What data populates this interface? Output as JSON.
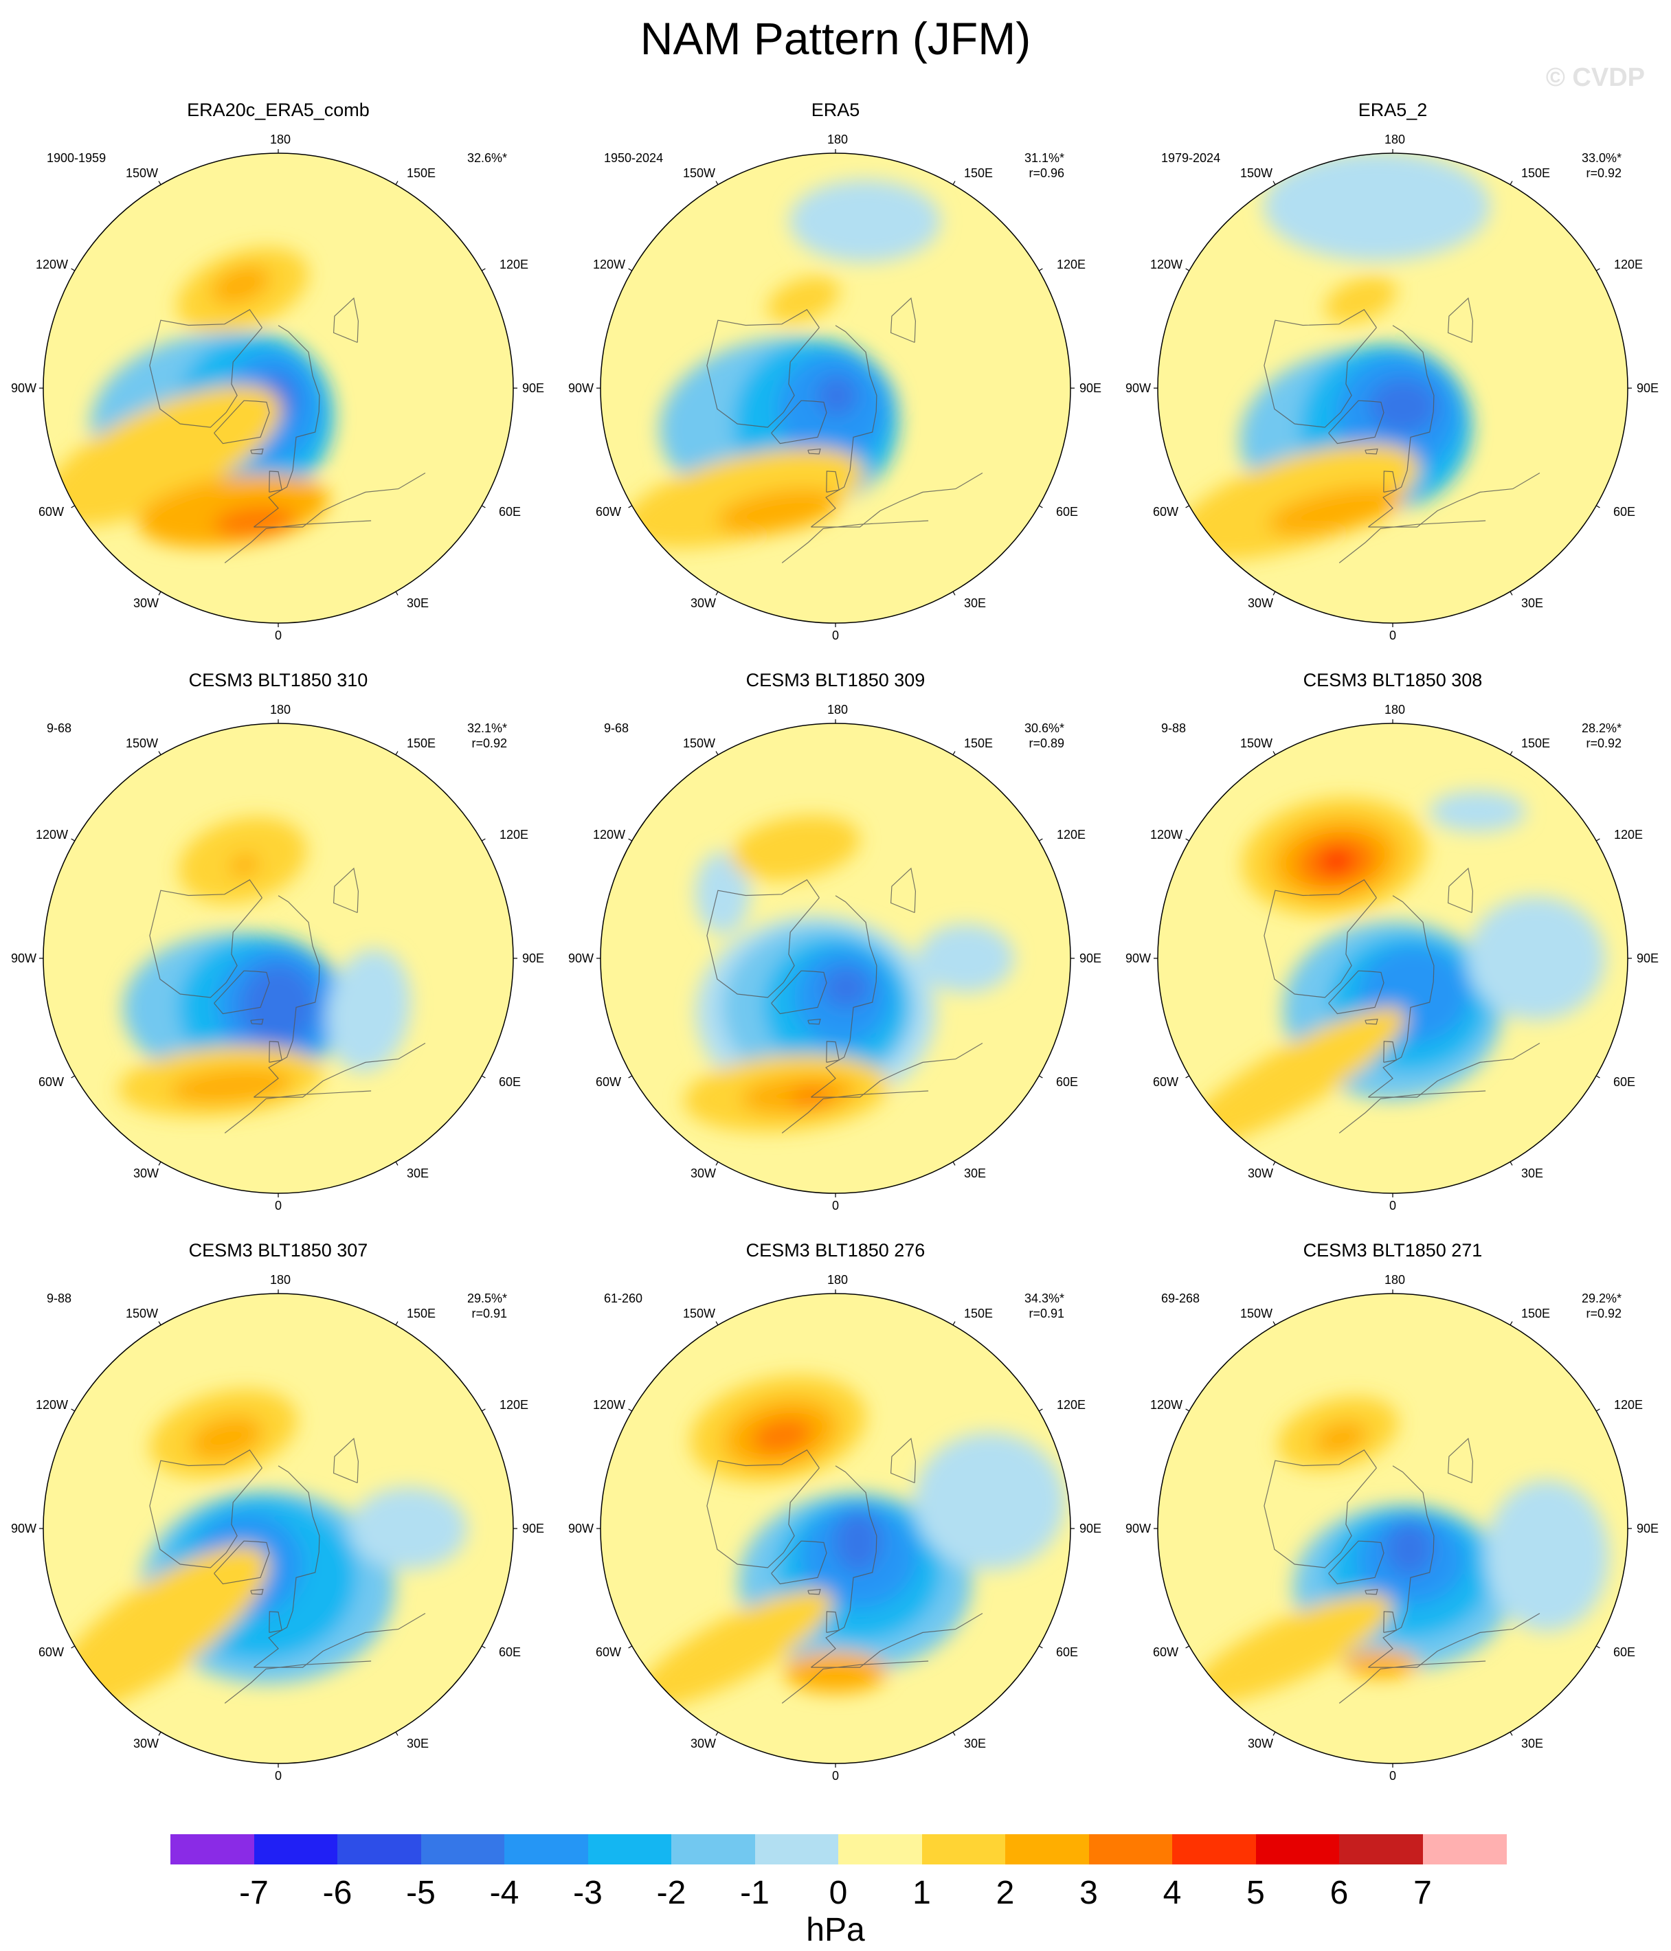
{
  "title": "NAM Pattern (JFM)",
  "copyright": "© CVDP",
  "units": "hPa",
  "lon_labels": {
    "top": "180",
    "bottom": "0",
    "left": "90W",
    "right": "90E",
    "upper_left_outer": "120W",
    "upper_left_inner": "150W",
    "upper_right_inner": "150E",
    "upper_right_outer": "120E",
    "lower_left_outer": "60W",
    "lower_left_inner": "30W",
    "lower_right_inner": "30E",
    "lower_right_outer": "60E"
  },
  "colorbar": {
    "colors": [
      "#8a2be6",
      "#2020f5",
      "#2d4ee8",
      "#3577e8",
      "#2596f5",
      "#14b6f2",
      "#72c8f0",
      "#b2dff2",
      "#fff69a",
      "#ffd434",
      "#ffae00",
      "#ff7a00",
      "#ff3300",
      "#e60000",
      "#c61e1e",
      "#ffb0b0"
    ],
    "ticks": [
      "-7",
      "-6",
      "-5",
      "-4",
      "-3",
      "-2",
      "-1",
      "0",
      "1",
      "2",
      "3",
      "4",
      "5",
      "6",
      "7"
    ]
  },
  "panels": [
    {
      "name": "ERA20c_ERA5_comb",
      "years": "1900-1959",
      "pct": "32.6%*",
      "r": "",
      "features": [
        {
          "type": "blob",
          "lon": -80,
          "lat": 50,
          "rx": 95,
          "ry": 80,
          "rot": -18,
          "level": 7
        },
        {
          "type": "blob",
          "lon": -70,
          "lat": 62,
          "rx": 175,
          "ry": 115,
          "rot": -10,
          "level": 6
        },
        {
          "type": "blob",
          "lon": -40,
          "lat": 76,
          "rx": 115,
          "ry": 120,
          "rot": 0,
          "level": 5
        },
        {
          "type": "blob",
          "lon": -20,
          "lat": 82,
          "rx": 70,
          "ry": 80,
          "rot": 0,
          "level": 4
        },
        {
          "type": "blob",
          "lon": -10,
          "lat": 86,
          "rx": 30,
          "ry": 36,
          "rot": 0,
          "level": 3
        },
        {
          "type": "blob",
          "lon": -160,
          "lat": 50,
          "rx": 100,
          "ry": 55,
          "rot": -20,
          "level": 9
        },
        {
          "type": "blob",
          "lon": -160,
          "lat": 48,
          "rx": 45,
          "ry": 25,
          "rot": -20,
          "level": 10
        },
        {
          "type": "blob",
          "lon": -60,
          "lat": 38,
          "rx": 190,
          "ry": 70,
          "rot": -25,
          "level": 9
        },
        {
          "type": "blob",
          "lon": -20,
          "lat": 40,
          "rx": 140,
          "ry": 50,
          "rot": -8,
          "level": 10
        },
        {
          "type": "blob",
          "lon": -10,
          "lat": 38,
          "rx": 60,
          "ry": 22,
          "rot": -5,
          "level": 11
        }
      ]
    },
    {
      "name": "ERA5",
      "years": "1950-2024",
      "pct": "31.1%*",
      "r": "r=0.96",
      "features": [
        {
          "type": "blob",
          "lon": -60,
          "lat": 65,
          "rx": 175,
          "ry": 120,
          "rot": -8,
          "level": 6
        },
        {
          "type": "blob",
          "lon": -30,
          "lat": 75,
          "rx": 120,
          "ry": 120,
          "rot": 0,
          "level": 5
        },
        {
          "type": "blob",
          "lon": -10,
          "lat": 82,
          "rx": 80,
          "ry": 80,
          "rot": 0,
          "level": 4
        },
        {
          "type": "blob",
          "lon": 10,
          "lat": 87,
          "rx": 30,
          "ry": 30,
          "rot": 0,
          "level": 3
        },
        {
          "type": "blob",
          "lon": 170,
          "lat": 25,
          "rx": 110,
          "ry": 60,
          "rot": 0,
          "level": 7
        },
        {
          "type": "blob",
          "lon": -160,
          "lat": 54,
          "rx": 55,
          "ry": 30,
          "rot": -20,
          "level": 9
        },
        {
          "type": "blob",
          "lon": -40,
          "lat": 35,
          "rx": 180,
          "ry": 60,
          "rot": -14,
          "level": 9
        },
        {
          "type": "blob",
          "lon": -25,
          "lat": 38,
          "rx": 90,
          "ry": 30,
          "rot": -10,
          "level": 10
        }
      ]
    },
    {
      "name": "ERA5_2",
      "years": "1979-2024",
      "pct": "33.0%*",
      "r": "r=0.92",
      "features": [
        {
          "type": "blob",
          "lon": -40,
          "lat": 68,
          "rx": 170,
          "ry": 120,
          "rot": -8,
          "level": 6
        },
        {
          "type": "blob",
          "lon": -10,
          "lat": 75,
          "rx": 125,
          "ry": 120,
          "rot": 0,
          "level": 5
        },
        {
          "type": "blob",
          "lon": 10,
          "lat": 80,
          "rx": 90,
          "ry": 85,
          "rot": 0,
          "level": 4
        },
        {
          "type": "blob",
          "lon": 30,
          "lat": 82,
          "rx": 50,
          "ry": 40,
          "rot": 0,
          "level": 3
        },
        {
          "type": "blob",
          "lon": -175,
          "lat": 20,
          "rx": 165,
          "ry": 80,
          "rot": 0,
          "level": 7
        },
        {
          "type": "blob",
          "lon": -160,
          "lat": 54,
          "rx": 55,
          "ry": 30,
          "rot": -20,
          "level": 9
        },
        {
          "type": "blob",
          "lon": -40,
          "lat": 33,
          "rx": 185,
          "ry": 65,
          "rot": -18,
          "level": 9
        },
        {
          "type": "blob",
          "lon": -25,
          "lat": 38,
          "rx": 100,
          "ry": 30,
          "rot": -12,
          "level": 10
        }
      ]
    },
    {
      "name": "CESM3 BLT1850 310",
      "years": "9-68",
      "pct": "32.1%*",
      "r": "r=0.92",
      "features": [
        {
          "type": "blob",
          "lon": -40,
          "lat": 65,
          "rx": 165,
          "ry": 110,
          "rot": 0,
          "level": 6
        },
        {
          "type": "blob",
          "lon": -20,
          "lat": 70,
          "rx": 120,
          "ry": 105,
          "rot": 0,
          "level": 5
        },
        {
          "type": "blob",
          "lon": 0,
          "lat": 72,
          "rx": 90,
          "ry": 85,
          "rot": 0,
          "level": 4
        },
        {
          "type": "blob",
          "lon": 0,
          "lat": 72,
          "rx": 55,
          "ry": 60,
          "rot": 0,
          "level": 3
        },
        {
          "type": "blob",
          "lon": 60,
          "lat": 50,
          "rx": 60,
          "ry": 90,
          "rot": 10,
          "level": 7
        },
        {
          "type": "blob",
          "lon": -160,
          "lat": 50,
          "rx": 95,
          "ry": 60,
          "rot": -15,
          "level": 9
        },
        {
          "type": "blob",
          "lon": -160,
          "lat": 52,
          "rx": 22,
          "ry": 15,
          "rot": -15,
          "level": 10
        },
        {
          "type": "blob",
          "lon": -25,
          "lat": 38,
          "rx": 150,
          "ry": 50,
          "rot": -5,
          "level": 9
        },
        {
          "type": "blob",
          "lon": -20,
          "lat": 38,
          "rx": 90,
          "ry": 25,
          "rot": -5,
          "level": 10
        }
      ]
    },
    {
      "name": "CESM3 BLT1850 309",
      "years": "9-68",
      "pct": "30.6%*",
      "r": "r=0.89",
      "features": [
        {
          "type": "blob",
          "lon": -20,
          "lat": 68,
          "rx": 175,
          "ry": 140,
          "rot": 0,
          "level": 7
        },
        {
          "type": "blob",
          "lon": -20,
          "lat": 70,
          "rx": 140,
          "ry": 120,
          "rot": 0,
          "level": 6
        },
        {
          "type": "blob",
          "lon": 0,
          "lat": 72,
          "rx": 105,
          "ry": 100,
          "rot": 0,
          "level": 5
        },
        {
          "type": "blob",
          "lon": 10,
          "lat": 75,
          "rx": 70,
          "ry": 70,
          "rot": 0,
          "level": 4
        },
        {
          "type": "blob",
          "lon": 20,
          "lat": 78,
          "rx": 35,
          "ry": 30,
          "rot": 0,
          "level": 3
        },
        {
          "type": "blob",
          "lon": -120,
          "lat": 40,
          "rx": 40,
          "ry": 60,
          "rot": 0,
          "level": 7
        },
        {
          "type": "blob",
          "lon": 90,
          "lat": 40,
          "rx": 70,
          "ry": 50,
          "rot": 0,
          "level": 7
        },
        {
          "type": "blob",
          "lon": -160,
          "lat": 45,
          "rx": 95,
          "ry": 45,
          "rot": -10,
          "level": 9
        },
        {
          "type": "blob",
          "lon": -20,
          "lat": 35,
          "rx": 150,
          "ry": 55,
          "rot": -5,
          "level": 9
        },
        {
          "type": "blob",
          "lon": -15,
          "lat": 36,
          "rx": 85,
          "ry": 28,
          "rot": -5,
          "level": 10
        },
        {
          "type": "blob",
          "lon": -10,
          "lat": 36,
          "rx": 30,
          "ry": 12,
          "rot": -5,
          "level": 11
        }
      ]
    },
    {
      "name": "CESM3 BLT1850 308",
      "years": "9-88",
      "pct": "28.2%*",
      "r": "r=0.92",
      "features": [
        {
          "type": "blob",
          "lon": 0,
          "lat": 70,
          "rx": 160,
          "ry": 130,
          "rot": 0,
          "level": 6
        },
        {
          "type": "blob",
          "lon": 20,
          "lat": 72,
          "rx": 115,
          "ry": 100,
          "rot": 0,
          "level": 5
        },
        {
          "type": "blob",
          "lon": 30,
          "lat": 74,
          "rx": 80,
          "ry": 70,
          "rot": 0,
          "level": 4
        },
        {
          "type": "blob",
          "lon": 90,
          "lat": 35,
          "rx": 100,
          "ry": 90,
          "rot": 0,
          "level": 7
        },
        {
          "type": "blob",
          "lon": 150,
          "lat": 25,
          "rx": 70,
          "ry": 30,
          "rot": 0,
          "level": 7
        },
        {
          "type": "blob",
          "lon": -150,
          "lat": 45,
          "rx": 135,
          "ry": 85,
          "rot": -8,
          "level": 9
        },
        {
          "type": "blob",
          "lon": -150,
          "lat": 46,
          "rx": 95,
          "ry": 60,
          "rot": -8,
          "level": 10
        },
        {
          "type": "blob",
          "lon": -150,
          "lat": 47,
          "rx": 60,
          "ry": 38,
          "rot": -8,
          "level": 11
        },
        {
          "type": "blob",
          "lon": -150,
          "lat": 47,
          "rx": 25,
          "ry": 18,
          "rot": -8,
          "level": 12
        },
        {
          "type": "blob",
          "lon": -40,
          "lat": 30,
          "rx": 190,
          "ry": 45,
          "rot": -30,
          "level": 9
        }
      ]
    },
    {
      "name": "CESM3 BLT1850 307",
      "years": "9-88",
      "pct": "29.5%*",
      "r": "r=0.91",
      "features": [
        {
          "type": "blob",
          "lon": -10,
          "lat": 67,
          "rx": 185,
          "ry": 140,
          "rot": 0,
          "level": 6
        },
        {
          "type": "blob",
          "lon": -20,
          "lat": 70,
          "rx": 140,
          "ry": 120,
          "rot": 0,
          "level": 5
        },
        {
          "type": "blob",
          "lon": -40,
          "lat": 72,
          "rx": 80,
          "ry": 75,
          "rot": 0,
          "level": 4
        },
        {
          "type": "blob",
          "lon": 90,
          "lat": 40,
          "rx": 85,
          "ry": 60,
          "rot": 0,
          "level": 7
        },
        {
          "type": "blob",
          "lon": -150,
          "lat": 48,
          "rx": 110,
          "ry": 60,
          "rot": -15,
          "level": 9
        },
        {
          "type": "blob",
          "lon": -150,
          "lat": 50,
          "rx": 55,
          "ry": 30,
          "rot": -15,
          "level": 10
        },
        {
          "type": "blob",
          "lon": -50,
          "lat": 30,
          "rx": 190,
          "ry": 65,
          "rot": -35,
          "level": 9
        }
      ]
    },
    {
      "name": "CESM3 BLT1850 276",
      "years": "61-260",
      "pct": "34.3%*",
      "r": "r=0.91",
      "features": [
        {
          "type": "blob",
          "lon": 20,
          "lat": 68,
          "rx": 170,
          "ry": 130,
          "rot": 0,
          "level": 6
        },
        {
          "type": "blob",
          "lon": 30,
          "lat": 72,
          "rx": 120,
          "ry": 105,
          "rot": 0,
          "level": 5
        },
        {
          "type": "blob",
          "lon": 40,
          "lat": 76,
          "rx": 85,
          "ry": 75,
          "rot": 0,
          "level": 4
        },
        {
          "type": "blob",
          "lon": 60,
          "lat": 80,
          "rx": 35,
          "ry": 45,
          "rot": 0,
          "level": 3
        },
        {
          "type": "blob",
          "lon": 100,
          "lat": 30,
          "rx": 110,
          "ry": 100,
          "rot": 0,
          "level": 7
        },
        {
          "type": "blob",
          "lon": -150,
          "lat": 46,
          "rx": 130,
          "ry": 75,
          "rot": -12,
          "level": 9
        },
        {
          "type": "blob",
          "lon": -150,
          "lat": 48,
          "rx": 85,
          "ry": 50,
          "rot": -12,
          "level": 10
        },
        {
          "type": "blob",
          "lon": -150,
          "lat": 49,
          "rx": 45,
          "ry": 25,
          "rot": -12,
          "level": 11
        },
        {
          "type": "blob",
          "lon": -40,
          "lat": 30,
          "rx": 160,
          "ry": 45,
          "rot": -28,
          "level": 9
        },
        {
          "type": "blob",
          "lon": 0,
          "lat": 35,
          "rx": 75,
          "ry": 30,
          "rot": 0,
          "level": 10
        }
      ]
    },
    {
      "name": "CESM3 BLT1850 271",
      "years": "69-268",
      "pct": "29.2%*",
      "r": "r=0.92",
      "features": [
        {
          "type": "blob",
          "lon": 10,
          "lat": 67,
          "rx": 160,
          "ry": 120,
          "rot": 0,
          "level": 6
        },
        {
          "type": "blob",
          "lon": 20,
          "lat": 72,
          "rx": 120,
          "ry": 95,
          "rot": 0,
          "level": 5
        },
        {
          "type": "blob",
          "lon": 30,
          "lat": 76,
          "rx": 80,
          "ry": 65,
          "rot": 0,
          "level": 4
        },
        {
          "type": "blob",
          "lon": 40,
          "lat": 80,
          "rx": 35,
          "ry": 40,
          "rot": 0,
          "level": 3
        },
        {
          "type": "blob",
          "lon": 80,
          "lat": 30,
          "rx": 90,
          "ry": 110,
          "rot": 0,
          "level": 7
        },
        {
          "type": "blob",
          "lon": -150,
          "lat": 48,
          "rx": 90,
          "ry": 50,
          "rot": -15,
          "level": 9
        },
        {
          "type": "blob",
          "lon": -150,
          "lat": 50,
          "rx": 40,
          "ry": 22,
          "rot": -15,
          "level": 10
        },
        {
          "type": "blob",
          "lon": -40,
          "lat": 30,
          "rx": 160,
          "ry": 45,
          "rot": -25,
          "level": 9
        },
        {
          "type": "blob",
          "lon": -5,
          "lat": 38,
          "rx": 55,
          "ry": 20,
          "rot": 0,
          "level": 10
        }
      ]
    }
  ]
}
